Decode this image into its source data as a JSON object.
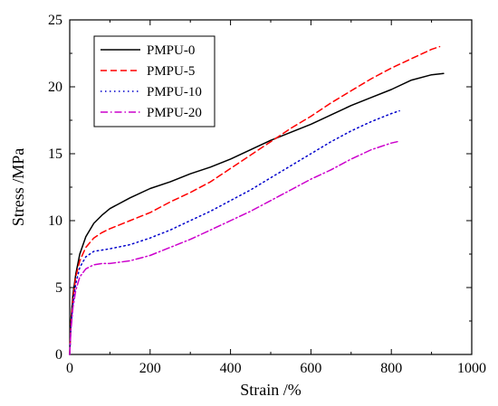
{
  "chart_data": {
    "type": "line",
    "xlabel": "Strain /%",
    "ylabel": "Stress /MPa",
    "xlim": [
      0,
      1000
    ],
    "ylim": [
      0,
      25
    ],
    "xticks": [
      0,
      200,
      400,
      600,
      800,
      1000
    ],
    "yticks": [
      0,
      5,
      10,
      15,
      20,
      25
    ],
    "grid": false,
    "legend_position": "top-left",
    "series": [
      {
        "name": "PMPU-0",
        "color": "#000000",
        "dash": "solid",
        "x": [
          0,
          3,
          8,
          15,
          25,
          40,
          60,
          80,
          100,
          150,
          200,
          250,
          300,
          350,
          400,
          450,
          500,
          550,
          600,
          650,
          700,
          750,
          800,
          850,
          900,
          930
        ],
        "y": [
          0,
          2.5,
          4.5,
          6.0,
          7.5,
          8.8,
          9.8,
          10.4,
          10.9,
          11.7,
          12.4,
          12.9,
          13.5,
          14.0,
          14.6,
          15.3,
          16.0,
          16.6,
          17.2,
          17.9,
          18.6,
          19.2,
          19.8,
          20.5,
          20.9,
          21.0
        ]
      },
      {
        "name": "PMPU-5",
        "color": "#ff0000",
        "dash": "dashed",
        "x": [
          0,
          3,
          8,
          15,
          25,
          40,
          60,
          80,
          100,
          150,
          200,
          250,
          300,
          350,
          400,
          450,
          500,
          550,
          600,
          650,
          700,
          750,
          800,
          850,
          900,
          920
        ],
        "y": [
          0,
          2.2,
          4.2,
          5.8,
          7.0,
          8.0,
          8.7,
          9.1,
          9.4,
          10.0,
          10.6,
          11.4,
          12.1,
          12.9,
          13.9,
          14.9,
          15.9,
          16.9,
          17.8,
          18.8,
          19.7,
          20.6,
          21.4,
          22.1,
          22.8,
          23.0
        ]
      },
      {
        "name": "PMPU-10",
        "color": "#0000cc",
        "dash": "dotted",
        "x": [
          0,
          3,
          8,
          15,
          25,
          40,
          60,
          80,
          100,
          150,
          200,
          250,
          300,
          350,
          400,
          450,
          500,
          550,
          600,
          650,
          700,
          750,
          800,
          820
        ],
        "y": [
          0,
          2.0,
          3.8,
          5.3,
          6.5,
          7.3,
          7.7,
          7.8,
          7.9,
          8.2,
          8.7,
          9.3,
          10.0,
          10.7,
          11.5,
          12.3,
          13.2,
          14.1,
          15.0,
          15.9,
          16.7,
          17.4,
          18.0,
          18.2
        ]
      },
      {
        "name": "PMPU-20",
        "color": "#cc00cc",
        "dash": "dashdot",
        "x": [
          0,
          3,
          8,
          15,
          25,
          40,
          60,
          80,
          100,
          150,
          200,
          250,
          300,
          350,
          400,
          450,
          500,
          550,
          600,
          650,
          700,
          750,
          800,
          815
        ],
        "y": [
          0,
          1.8,
          3.5,
          4.8,
          5.8,
          6.4,
          6.7,
          6.8,
          6.8,
          7.0,
          7.4,
          8.0,
          8.6,
          9.3,
          10.0,
          10.7,
          11.5,
          12.3,
          13.1,
          13.8,
          14.6,
          15.3,
          15.8,
          15.9
        ]
      }
    ]
  }
}
